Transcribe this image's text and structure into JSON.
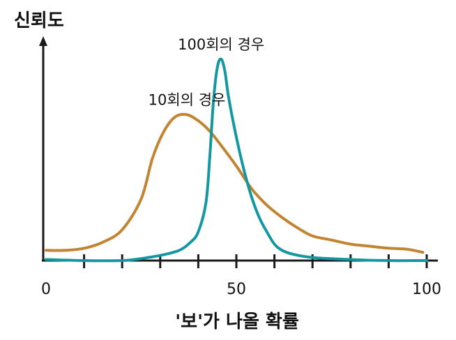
{
  "chart_data": {
    "type": "line",
    "title": "",
    "ylabel": "신뢰도",
    "xlabel": "'보'가 나올 확률",
    "xlim": [
      0,
      100
    ],
    "ylim": [
      0,
      1
    ],
    "x_ticks": [
      10,
      20,
      30,
      40,
      50,
      60,
      70,
      80,
      90,
      100
    ],
    "x_tick_labels": [
      "0",
      "50",
      "100"
    ],
    "x_tick_label_values": [
      0,
      50,
      100
    ],
    "grid": false,
    "legend": "none",
    "series": [
      {
        "name": "10회의 경우",
        "color": "#c28431",
        "x": [
          0,
          5,
          10,
          15,
          20,
          25,
          28,
          31,
          34,
          37,
          40,
          43,
          46,
          50,
          54,
          58,
          62,
          66,
          70,
          75,
          80,
          85,
          90,
          95,
          99
        ],
        "y": [
          0.05,
          0.05,
          0.06,
          0.09,
          0.15,
          0.3,
          0.5,
          0.63,
          0.7,
          0.71,
          0.68,
          0.63,
          0.56,
          0.46,
          0.35,
          0.27,
          0.21,
          0.16,
          0.12,
          0.1,
          0.08,
          0.07,
          0.06,
          0.055,
          0.04
        ]
      },
      {
        "name": "100회의 경우",
        "color": "#1597a1",
        "x": [
          0,
          10,
          20,
          25,
          30,
          35,
          38,
          40,
          42,
          43,
          44,
          45,
          46,
          47,
          48,
          50,
          52,
          54,
          56,
          58,
          60,
          62,
          65,
          70,
          80,
          90,
          100
        ],
        "y": [
          0.005,
          0.0,
          0.0,
          0.01,
          0.025,
          0.05,
          0.09,
          0.14,
          0.28,
          0.5,
          0.78,
          0.94,
          0.98,
          0.92,
          0.79,
          0.6,
          0.44,
          0.31,
          0.21,
          0.14,
          0.08,
          0.05,
          0.03,
          0.015,
          0.005,
          0.0,
          0.0
        ]
      }
    ],
    "annotations": [
      {
        "text": "10회의 경우",
        "x": 37,
        "y": 0.71
      },
      {
        "text": "100회의 경우",
        "x": 46,
        "y": 0.98
      }
    ]
  }
}
